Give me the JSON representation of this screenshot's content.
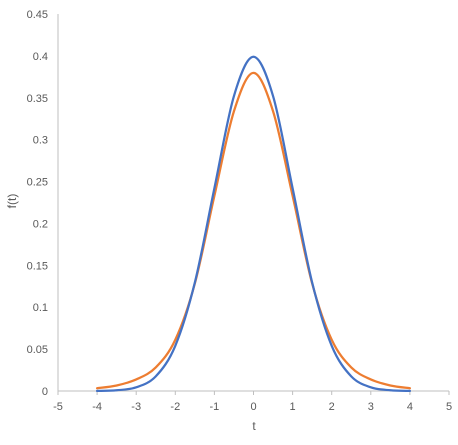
{
  "chart_data": {
    "type": "line",
    "title": "",
    "xlabel": "t",
    "ylabel": "f(t)",
    "xlim": [
      -5,
      5
    ],
    "ylim": [
      0,
      0.45
    ],
    "x_ticks": [
      -5,
      -4,
      -3,
      -2,
      -1,
      0,
      1,
      2,
      3,
      4,
      5
    ],
    "x_tick_labels": [
      "-5",
      "-4",
      "-3",
      "-2",
      "-1",
      "0",
      "1",
      "2",
      "3",
      "4",
      "5"
    ],
    "y_ticks": [
      0,
      0.05,
      0.1,
      0.15,
      0.2,
      0.25,
      0.3,
      0.35,
      0.4,
      0.45
    ],
    "y_tick_labels": [
      "0",
      "0.05",
      "0.1",
      "0.15",
      "0.2",
      "0.25",
      "0.3",
      "0.35",
      "0.4",
      "0.45"
    ],
    "grid": false,
    "legend": "none",
    "x": [
      -4,
      -3.5,
      -3,
      -2.5,
      -2,
      -1.5,
      -1,
      -0.5,
      0,
      0.5,
      1,
      1.5,
      2,
      2.5,
      3,
      3.5,
      4
    ],
    "series": [
      {
        "color": "#4472C4",
        "values": [
          0.0001,
          0.0009,
          0.0044,
          0.0175,
          0.054,
          0.1295,
          0.242,
          0.3521,
          0.3989,
          0.3521,
          0.242,
          0.1295,
          0.054,
          0.0175,
          0.0044,
          0.0009,
          0.0001
        ]
      },
      {
        "color": "#ED7D31",
        "values": [
          0.0033,
          0.0066,
          0.0138,
          0.0281,
          0.0612,
          0.1283,
          0.233,
          0.3339,
          0.3797,
          0.3339,
          0.233,
          0.1283,
          0.0612,
          0.0281,
          0.0138,
          0.0066,
          0.0033
        ]
      }
    ]
  },
  "colors": {
    "axis": "#BFBFBF",
    "text": "#595959"
  }
}
